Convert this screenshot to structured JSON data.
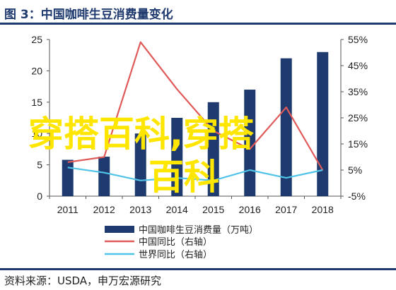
{
  "header": {
    "title": "图 3：中国咖啡生豆消费量变化"
  },
  "footer": {
    "source": "资料来源：USDA，申万宏源研究"
  },
  "watermark": {
    "line1": "穿搭百科,穿搭",
    "line2": "百科",
    "color": "#ffe600"
  },
  "colors": {
    "bar": "#1f3a6e",
    "china_yoy": "#e05a5a",
    "world_yoy": "#4fc3e8",
    "axis": "#555555"
  },
  "chart_data": {
    "type": "bar",
    "categories": [
      "2011",
      "2012",
      "2013",
      "2014",
      "2015",
      "2016",
      "2017",
      "2018"
    ],
    "left_axis": {
      "ylim": [
        0,
        25
      ],
      "ticks": [
        "0",
        "5",
        "10",
        "15",
        "20",
        "25"
      ]
    },
    "right_axis": {
      "ylim": [
        -5,
        55
      ],
      "ticks": [
        "-5%",
        "5%",
        "15%",
        "25%",
        "35%",
        "45%",
        "55%"
      ]
    },
    "series": [
      {
        "name": "中国咖啡生豆消费量（万吨）",
        "type": "bar",
        "axis": "left",
        "values": [
          5.8,
          6.3,
          10,
          12.5,
          15,
          17,
          22,
          23
        ]
      },
      {
        "name": "中国同比（右轴）",
        "type": "line",
        "axis": "right",
        "values": [
          8,
          10,
          54,
          36,
          20,
          13,
          29,
          5
        ]
      },
      {
        "name": "世界同比（右轴）",
        "type": "line",
        "axis": "right",
        "values": [
          6,
          4,
          1,
          2,
          1,
          5,
          2,
          5
        ]
      }
    ],
    "legend_position": "bottom"
  }
}
